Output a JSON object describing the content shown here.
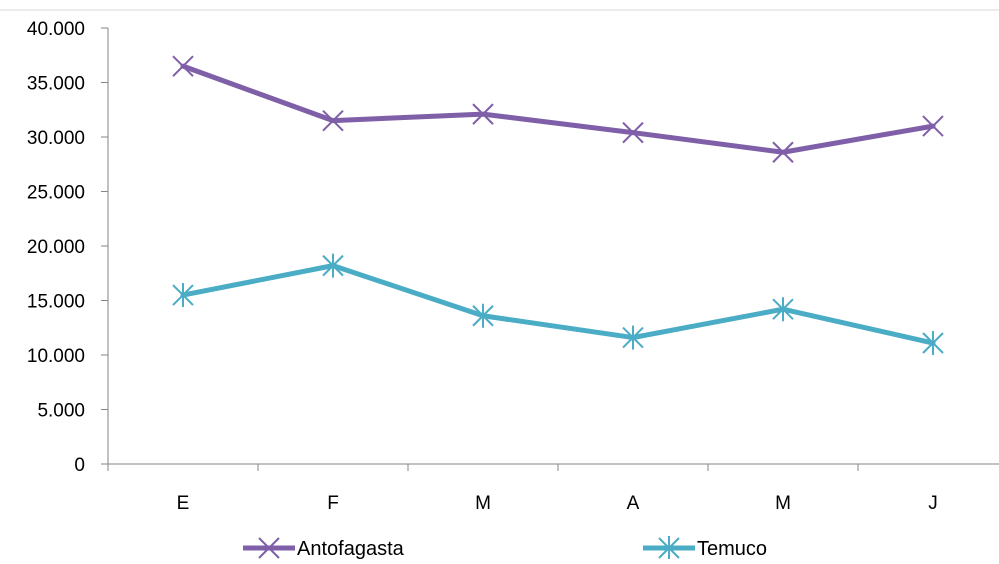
{
  "chart_data": {
    "type": "line",
    "categories": [
      "E",
      "F",
      "M",
      "A",
      "M",
      "J"
    ],
    "ylim": [
      0,
      40000
    ],
    "yticks": [
      0,
      5000,
      10000,
      15000,
      20000,
      25000,
      30000,
      35000,
      40000
    ],
    "ytick_labels": [
      "0",
      "5.000",
      "10.000",
      "15.000",
      "20.000",
      "25.000",
      "30.000",
      "35.000",
      "40.000"
    ],
    "grid": false,
    "legend_position": "bottom",
    "series": [
      {
        "name": "Antofagasta",
        "color": "#7F5FA8",
        "marker": "x",
        "values": [
          36500,
          31500,
          32100,
          30400,
          28600,
          31000
        ]
      },
      {
        "name": "Temuco",
        "color": "#4BACC6",
        "marker": "star",
        "values": [
          15500,
          18200,
          13600,
          11600,
          14200,
          11100
        ]
      }
    ]
  }
}
